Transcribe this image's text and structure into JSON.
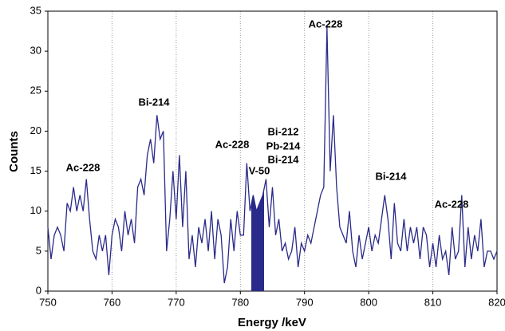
{
  "chart_data": {
    "type": "line",
    "xlabel": "Energy /keV",
    "ylabel": "Counts",
    "xlim": [
      750,
      820
    ],
    "ylim": [
      0,
      35
    ],
    "xticks": [
      750,
      760,
      770,
      780,
      790,
      800,
      810,
      820
    ],
    "yticks": [
      0,
      5,
      10,
      15,
      20,
      25,
      30,
      35
    ],
    "grid": true,
    "highlight": [
      781.7,
      783.7
    ],
    "highlight_color": "#2a2a8a",
    "annotations": [
      "Ac-228",
      "Bi-214",
      "Ac-228",
      "Bi-212",
      "Pb-214",
      "Bi-214",
      "V-50",
      "Ac-228",
      "Bi-214",
      "Ac-228"
    ],
    "x": [
      750,
      750.5,
      751,
      751.5,
      752,
      752.5,
      753,
      753.5,
      754,
      754.5,
      755,
      755.5,
      756,
      756.5,
      757,
      757.5,
      758,
      758.5,
      759,
      759.5,
      760,
      760.5,
      761,
      761.5,
      762,
      762.5,
      763,
      763.5,
      764,
      764.5,
      765,
      765.5,
      766,
      766.5,
      767,
      767.5,
      768,
      768.5,
      769,
      769.5,
      770,
      770.5,
      771,
      771.5,
      772,
      772.5,
      773,
      773.5,
      774,
      774.5,
      775,
      775.5,
      776,
      776.5,
      777,
      777.5,
      778,
      778.5,
      779,
      779.5,
      780,
      780.5,
      781,
      781.5,
      782,
      782.5,
      783,
      783.5,
      784,
      784.5,
      785,
      785.5,
      786,
      786.5,
      787,
      787.5,
      788,
      788.5,
      789,
      789.5,
      790,
      790.5,
      791,
      791.5,
      792,
      792.5,
      793,
      793.5,
      794,
      794.5,
      795,
      795.5,
      796,
      796.5,
      797,
      797.5,
      798,
      798.5,
      799,
      799.5,
      800,
      800.5,
      801,
      801.5,
      802,
      802.5,
      803,
      803.5,
      804,
      804.5,
      805,
      805.5,
      806,
      806.5,
      807,
      807.5,
      808,
      808.5,
      809,
      809.5,
      810,
      810.5,
      811,
      811.5,
      812,
      812.5,
      813,
      813.5,
      814,
      814.5,
      815,
      815.5,
      816,
      816.5,
      817,
      817.5,
      818,
      818.5,
      819,
      819.5,
      820
    ],
    "series": [
      {
        "color": "#2a2a8a",
        "values": [
          8,
          4,
          7,
          8,
          7,
          5,
          11,
          10,
          13,
          10,
          12,
          10,
          14,
          9,
          5,
          4,
          7,
          5,
          7,
          2,
          7,
          9,
          8,
          5,
          10,
          7,
          9,
          6,
          13,
          14,
          12,
          17,
          19,
          16,
          22,
          19,
          20,
          5,
          9,
          15,
          9,
          17,
          8,
          15,
          4,
          7,
          3,
          8,
          6,
          9,
          5,
          10,
          4,
          9,
          7,
          1,
          3,
          9,
          5,
          10,
          7,
          7,
          16,
          10,
          12,
          10,
          11,
          12,
          14,
          8,
          13,
          7,
          9,
          5,
          6,
          4,
          5,
          8,
          3,
          6,
          5,
          7,
          6,
          8,
          10,
          12,
          13,
          33,
          15,
          22,
          13,
          8,
          7,
          6,
          10,
          5,
          3,
          7,
          4,
          6,
          8,
          5,
          7,
          6,
          9,
          12,
          9,
          4,
          11,
          6,
          5,
          9,
          5,
          8,
          6,
          8,
          4,
          8,
          7,
          3,
          6,
          3,
          7,
          4,
          5,
          2,
          8,
          4,
          5,
          12,
          3,
          8,
          4,
          7,
          5,
          9,
          3,
          5,
          5,
          4,
          5
        ]
      }
    ]
  }
}
